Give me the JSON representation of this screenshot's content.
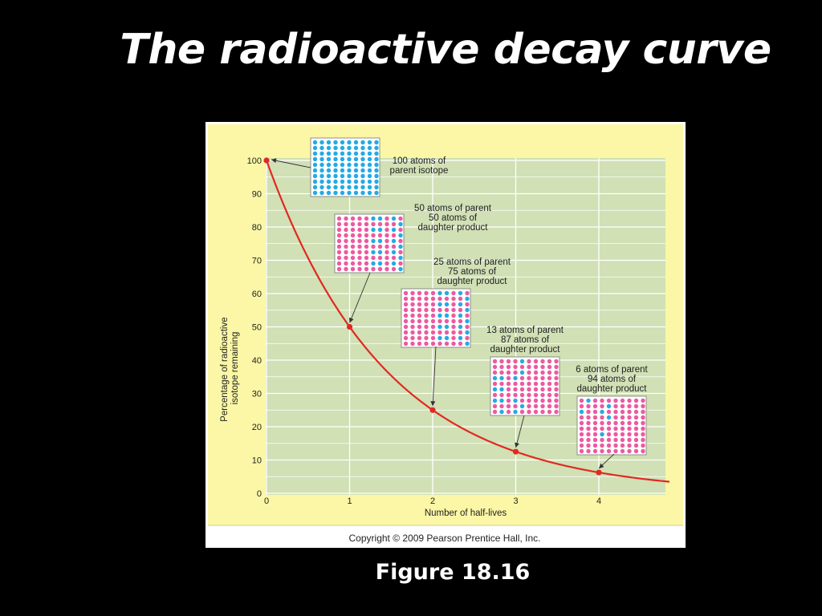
{
  "slide": {
    "title": "The radioactive decay curve",
    "caption": "Figure 18.16"
  },
  "colors": {
    "background": "#000000",
    "panel": "#fbf7a6",
    "plot_area": "#d1e0b5",
    "grid": "#ffffff",
    "curve": "#e02a20",
    "point": "#e02a20",
    "parent_atom": "#24aae4",
    "daughter_atom": "#ec5aa0"
  },
  "chart_data": {
    "type": "line",
    "title": "",
    "xlabel": "Number of half-lives",
    "ylabel": "Percentage of radioactive isotope remaining",
    "ylabel_lines": [
      "Percentage of radioactive",
      "isotope remaining"
    ],
    "xlim": [
      0,
      4.85
    ],
    "ylim": [
      0,
      100
    ],
    "x_ticks": [
      0,
      1,
      2,
      3,
      4
    ],
    "y_ticks": [
      0,
      10,
      20,
      30,
      40,
      50,
      60,
      70,
      80,
      90,
      100
    ],
    "grid": true,
    "series": [
      {
        "name": "",
        "curve": "exponential decay",
        "x": [
          0,
          1,
          2,
          3,
          4
        ],
        "y": [
          100,
          50,
          25,
          12.5,
          6.25
        ]
      }
    ],
    "annotations": [
      {
        "x": 0,
        "y": 100,
        "parent_atoms": 100,
        "lines": [
          "100 atoms of",
          "parent isotope"
        ]
      },
      {
        "x": 1,
        "y": 50,
        "parent_atoms": 50,
        "lines": [
          "50 atoms of parent",
          "50 atoms of",
          "daughter product"
        ]
      },
      {
        "x": 2,
        "y": 25,
        "parent_atoms": 25,
        "lines": [
          "25 atoms of parent",
          "75 atoms of",
          "daughter product"
        ]
      },
      {
        "x": 3,
        "y": 12.5,
        "parent_atoms": 13,
        "lines": [
          "13 atoms of parent",
          "87 atoms of",
          "daughter product"
        ]
      },
      {
        "x": 4,
        "y": 6.25,
        "parent_atoms": 6,
        "lines": [
          "6 atoms of parent",
          "94 atoms of",
          "daughter product"
        ]
      }
    ],
    "copyright": "Copyright © 2009 Pearson Prentice Hall, Inc."
  }
}
